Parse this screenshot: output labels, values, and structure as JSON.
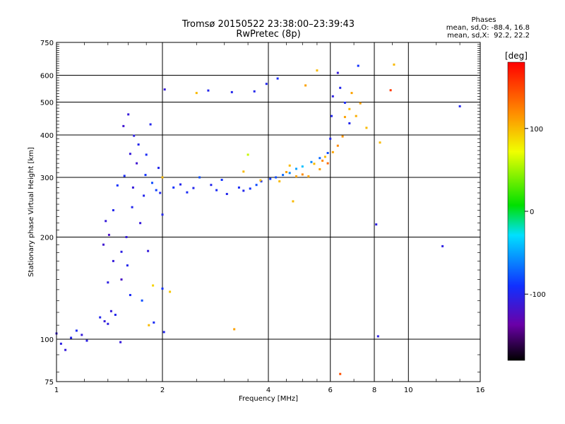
{
  "header": {
    "title": "Tromsø 20150522 23:38:00–23:39:43",
    "subtitle": "RwPretec (8p)",
    "phase_heading": "Phases",
    "phase_line_o": "mean, sd,O: -88.4, 16.8",
    "phase_line_x": "mean, sd,X:  92.2, 22.2"
  },
  "chart_data": {
    "type": "scatter",
    "title": "Tromsø 20150522 23:38:00–23:39:43",
    "subtitle": "RwPretec (8p)",
    "xlabel": "Frequency [MHz]",
    "ylabel": "Stationary phase Virtual Height [km]",
    "xscale": "log",
    "yscale": "log",
    "xlim": [
      1,
      16
    ],
    "ylim": [
      75,
      750
    ],
    "xticks": [
      1,
      2,
      4,
      6,
      8,
      10,
      16
    ],
    "yticks": [
      75,
      100,
      200,
      300,
      400,
      500,
      600,
      750
    ],
    "grid": true,
    "colorbar": {
      "label": "[deg]",
      "ticks": [
        100,
        0,
        -100
      ],
      "range": [
        -180,
        180
      ],
      "colors": [
        "#000000",
        "#6a00a8",
        "#1030ff",
        "#00e0ff",
        "#00e000",
        "#f0ff00",
        "#ff8c00",
        "#ff0000"
      ]
    },
    "series": [
      {
        "points": [
          [
            1.0,
            104,
            -110
          ],
          [
            1.03,
            97,
            -105
          ],
          [
            1.06,
            93,
            -110
          ],
          [
            1.1,
            101,
            -100
          ],
          [
            1.14,
            106,
            -95
          ],
          [
            1.18,
            103,
            -110
          ],
          [
            1.22,
            99,
            -105
          ],
          [
            1.33,
            116,
            -100
          ],
          [
            1.36,
            190,
            -115
          ],
          [
            1.37,
            113,
            -110
          ],
          [
            1.38,
            223,
            -110
          ],
          [
            1.4,
            111,
            -105
          ],
          [
            1.4,
            147,
            -105
          ],
          [
            1.41,
            203,
            -120
          ],
          [
            1.43,
            121,
            -110
          ],
          [
            1.45,
            240,
            -100
          ],
          [
            1.45,
            170,
            -110
          ],
          [
            1.47,
            118,
            -100
          ],
          [
            1.49,
            284,
            -90
          ],
          [
            1.52,
            98,
            -110
          ],
          [
            1.53,
            150,
            -120
          ],
          [
            1.53,
            181,
            -105
          ],
          [
            1.55,
            425,
            -115
          ],
          [
            1.56,
            303,
            -95
          ],
          [
            1.58,
            200,
            -110
          ],
          [
            1.59,
            165,
            -100
          ],
          [
            1.6,
            460,
            -110
          ],
          [
            1.62,
            135,
            -95
          ],
          [
            1.62,
            352,
            -110
          ],
          [
            1.64,
            245,
            -100
          ],
          [
            1.65,
            280,
            -110
          ],
          [
            1.66,
            398,
            -105
          ],
          [
            1.69,
            330,
            -115
          ],
          [
            1.71,
            375,
            -100
          ],
          [
            1.73,
            220,
            -110
          ],
          [
            1.75,
            130,
            -80
          ],
          [
            1.77,
            265,
            -100
          ],
          [
            1.79,
            305,
            -90
          ],
          [
            1.8,
            350,
            -95
          ],
          [
            1.82,
            182,
            -110
          ],
          [
            1.85,
            430,
            -100
          ],
          [
            1.87,
            289,
            -80
          ],
          [
            1.89,
            112,
            -95
          ],
          [
            1.92,
            275,
            -85
          ],
          [
            1.95,
            320,
            -100
          ],
          [
            1.97,
            270,
            -100
          ],
          [
            2.0,
            141,
            -90
          ],
          [
            2.02,
            105,
            -100
          ],
          [
            2.0,
            233,
            -100
          ],
          [
            2.03,
            545,
            -110
          ],
          [
            2.15,
            280,
            -90
          ],
          [
            2.25,
            286,
            -100
          ],
          [
            2.35,
            271,
            -95
          ],
          [
            2.45,
            279,
            -100
          ],
          [
            2.55,
            300,
            -80
          ],
          [
            2.7,
            541,
            -100
          ],
          [
            2.75,
            285,
            -100
          ],
          [
            2.85,
            275,
            -95
          ],
          [
            2.95,
            295,
            -90
          ],
          [
            3.05,
            268,
            -100
          ],
          [
            3.15,
            535,
            -100
          ],
          [
            3.3,
            280,
            -95
          ],
          [
            3.4,
            274,
            -100
          ],
          [
            3.55,
            278,
            -90
          ],
          [
            3.65,
            538,
            -100
          ],
          [
            3.7,
            285,
            -80
          ],
          [
            3.82,
            292,
            -90
          ],
          [
            3.95,
            566,
            -100
          ],
          [
            4.05,
            297,
            -85
          ],
          [
            4.2,
            300,
            -80
          ],
          [
            4.25,
            587,
            -95
          ],
          [
            4.4,
            305,
            -70
          ],
          [
            4.6,
            309,
            -60
          ],
          [
            4.8,
            318,
            -50
          ],
          [
            5.0,
            323,
            -40
          ],
          [
            5.3,
            333,
            -60
          ],
          [
            5.6,
            342,
            -70
          ],
          [
            5.9,
            354,
            -80
          ],
          [
            6.0,
            390,
            -100
          ],
          [
            6.05,
            455,
            -100
          ],
          [
            6.1,
            520,
            -105
          ],
          [
            6.3,
            610,
            -110
          ],
          [
            6.4,
            551,
            -100
          ],
          [
            6.6,
            498,
            -95
          ],
          [
            6.8,
            433,
            -100
          ],
          [
            7.2,
            640,
            -90
          ],
          [
            8.1,
            218,
            -105
          ],
          [
            8.2,
            102,
            -105
          ],
          [
            12.5,
            188,
            -105
          ],
          [
            14.0,
            486,
            -100
          ]
        ]
      },
      {
        "points": [
          [
            1.83,
            110,
            100
          ],
          [
            1.88,
            144,
            90
          ],
          [
            2.0,
            300,
            100
          ],
          [
            2.1,
            138,
            95
          ],
          [
            2.5,
            532,
            100
          ],
          [
            3.2,
            107,
            110
          ],
          [
            3.4,
            312,
            100
          ],
          [
            3.5,
            350,
            60
          ],
          [
            3.8,
            294,
            100
          ],
          [
            4.3,
            292,
            100
          ],
          [
            4.5,
            311,
            110
          ],
          [
            4.6,
            325,
            100
          ],
          [
            4.7,
            255,
            100
          ],
          [
            4.8,
            302,
            110
          ],
          [
            5.0,
            306,
            120
          ],
          [
            5.1,
            560,
            110
          ],
          [
            5.2,
            302,
            110
          ],
          [
            5.4,
            329,
            100
          ],
          [
            5.5,
            620,
            100
          ],
          [
            5.6,
            317,
            110
          ],
          [
            5.7,
            336,
            120
          ],
          [
            5.8,
            345,
            100
          ],
          [
            5.9,
            330,
            135
          ],
          [
            6.1,
            356,
            110
          ],
          [
            6.3,
            372,
            120
          ],
          [
            6.5,
            396,
            115
          ],
          [
            6.6,
            452,
            110
          ],
          [
            6.8,
            477,
            100
          ],
          [
            6.9,
            532,
            110
          ],
          [
            7.1,
            455,
            105
          ],
          [
            7.3,
            496,
            110
          ],
          [
            7.6,
            420,
            100
          ],
          [
            6.4,
            79,
            145
          ],
          [
            8.3,
            380,
            100
          ],
          [
            8.9,
            542,
            155
          ],
          [
            9.1,
            645,
            100
          ]
        ]
      }
    ]
  }
}
